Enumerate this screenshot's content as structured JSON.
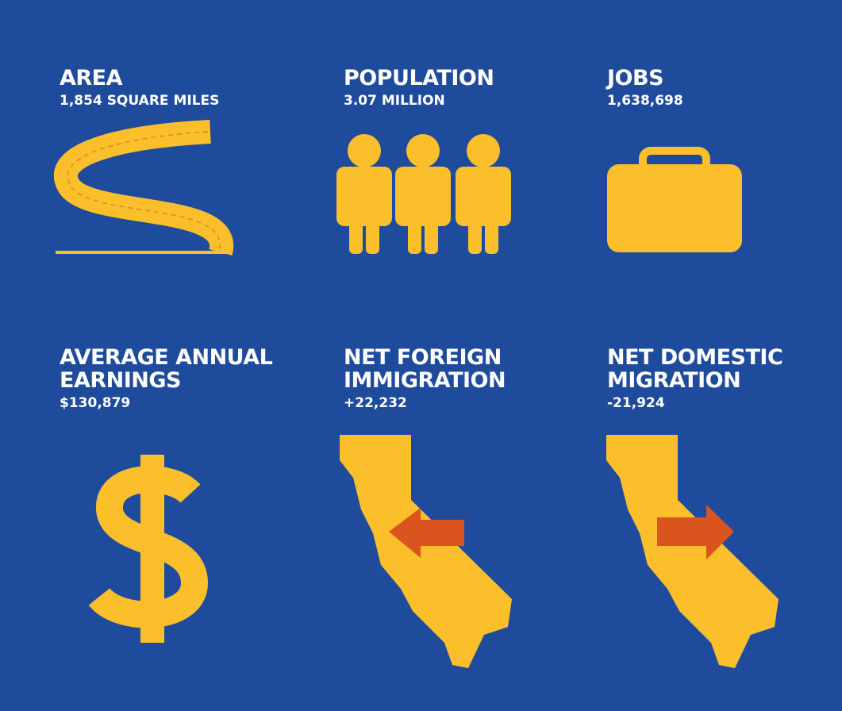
{
  "tiles": [
    {
      "title": [
        "AREA"
      ],
      "value": "1,854 SQUARE MILES"
    },
    {
      "title": [
        "POPULATION"
      ],
      "value": "3.07 MILLION"
    },
    {
      "title": [
        "JOBS"
      ],
      "value": "1,638,698"
    },
    {
      "title": [
        "AVERAGE ANNUAL",
        "EARNINGS"
      ],
      "value": "$130,879"
    },
    {
      "title": [
        "NET FOREIGN",
        "IMMIGRATION"
      ],
      "value": "+22,232"
    },
    {
      "title": [
        "NET DOMESTIC",
        "MIGRATION"
      ],
      "value": "-21,924"
    }
  ]
}
